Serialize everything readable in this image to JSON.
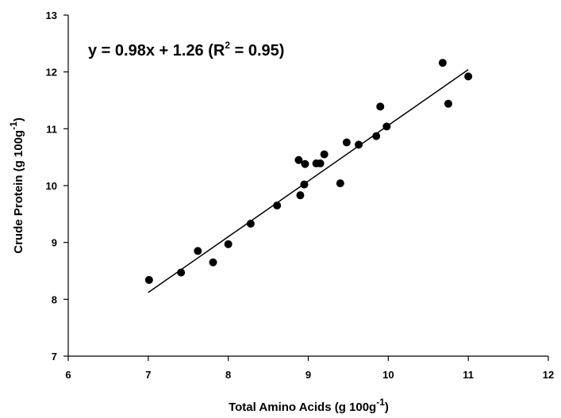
{
  "chart_data": {
    "type": "scatter",
    "x_axis": {
      "label_main": "Total Amino Acids (g 100g",
      "label_sup": "-1",
      "label_end": ")",
      "min": 6,
      "max": 12,
      "ticks": [
        "6",
        "7",
        "8",
        "9",
        "10",
        "11",
        "12"
      ]
    },
    "y_axis": {
      "label_main": "Crude Protein (g 100g",
      "label_sup": "-1",
      "label_end": ")",
      "min": 7,
      "max": 13,
      "ticks": [
        "7",
        "8",
        "9",
        "10",
        "11",
        "12",
        "13"
      ]
    },
    "annotation": {
      "pre": "y = 0.98x + 1.26 (R",
      "sup": "2",
      "post": " = 0.95)"
    },
    "regression": {
      "slope": 0.98,
      "intercept": 1.26,
      "x_start": 7.0,
      "x_end": 11.0
    },
    "points": [
      {
        "x": 7.01,
        "y": 8.34
      },
      {
        "x": 7.41,
        "y": 8.47
      },
      {
        "x": 7.62,
        "y": 8.85
      },
      {
        "x": 7.81,
        "y": 8.65
      },
      {
        "x": 8.0,
        "y": 8.97
      },
      {
        "x": 8.28,
        "y": 9.33
      },
      {
        "x": 8.61,
        "y": 9.65
      },
      {
        "x": 8.88,
        "y": 10.45
      },
      {
        "x": 8.9,
        "y": 9.83
      },
      {
        "x": 8.95,
        "y": 10.02
      },
      {
        "x": 8.96,
        "y": 10.38
      },
      {
        "x": 9.1,
        "y": 10.39
      },
      {
        "x": 9.15,
        "y": 10.39
      },
      {
        "x": 9.2,
        "y": 10.55
      },
      {
        "x": 9.4,
        "y": 10.04
      },
      {
        "x": 9.48,
        "y": 10.76
      },
      {
        "x": 9.63,
        "y": 10.72
      },
      {
        "x": 9.85,
        "y": 10.87
      },
      {
        "x": 9.9,
        "y": 11.39
      },
      {
        "x": 9.98,
        "y": 11.04
      },
      {
        "x": 10.68,
        "y": 12.16
      },
      {
        "x": 10.75,
        "y": 11.44
      },
      {
        "x": 11.0,
        "y": 11.92
      }
    ],
    "grid": false,
    "legend": "none"
  }
}
